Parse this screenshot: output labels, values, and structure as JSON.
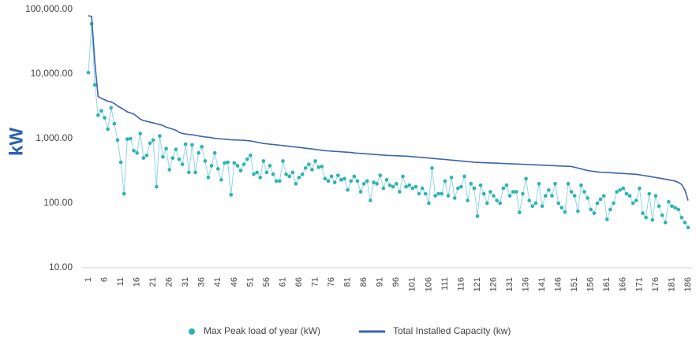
{
  "chart_data": {
    "type": "line",
    "y_label": "kW",
    "log_scale": true,
    "ylim": [
      10,
      100000
    ],
    "yticks": [
      {
        "value": 10,
        "label": "10.00"
      },
      {
        "value": 100,
        "label": "100.00"
      },
      {
        "value": 1000,
        "label": "1,000.00"
      },
      {
        "value": 10000,
        "label": "10,000.00"
      },
      {
        "value": 100000,
        "label": "100,000.00"
      }
    ],
    "legend": "bottom",
    "categories": [
      1,
      null,
      null,
      null,
      null,
      6,
      null,
      null,
      null,
      null,
      11,
      null,
      null,
      null,
      null,
      16,
      null,
      null,
      null,
      null,
      21,
      null,
      null,
      null,
      null,
      26,
      null,
      null,
      null,
      null,
      31,
      null,
      null,
      null,
      null,
      36,
      null,
      null,
      null,
      null,
      41,
      null,
      null,
      null,
      null,
      46,
      null,
      null,
      null,
      null,
      51,
      null,
      null,
      null,
      null,
      56,
      null,
      null,
      null,
      null,
      61,
      null,
      null,
      null,
      null,
      66,
      null,
      null,
      null,
      null,
      71,
      null,
      null,
      null,
      null,
      76,
      null,
      null,
      null,
      null,
      81,
      null,
      null,
      null,
      null,
      86,
      null,
      null,
      null,
      null,
      91,
      null,
      null,
      null,
      null,
      96,
      null,
      null,
      null,
      null,
      101,
      null,
      null,
      null,
      null,
      106,
      null,
      null,
      null,
      null,
      111,
      null,
      null,
      null,
      null,
      116,
      null,
      null,
      null,
      null,
      121,
      null,
      null,
      null,
      null,
      126,
      null,
      null,
      null,
      null,
      131,
      null,
      null,
      null,
      null,
      136,
      null,
      null,
      null,
      null,
      141,
      null,
      null,
      null,
      null,
      146,
      null,
      null,
      null,
      null,
      151,
      null,
      null,
      null,
      null,
      156,
      null,
      null,
      null,
      null,
      161,
      null,
      null,
      null,
      null,
      166,
      null,
      null,
      null,
      null,
      171,
      null,
      null,
      null,
      null,
      176,
      null,
      null,
      null,
      null,
      181,
      null,
      null,
      null,
      null,
      186
    ],
    "series": [
      {
        "name": "Max Peak load of year (kW)",
        "style": "markers",
        "color": "#2bb3b1",
        "line_color": "#8fd6e6",
        "values": [
          10500,
          60000,
          6800,
          2300,
          2700,
          2100,
          1400,
          3000,
          1700,
          950,
          430,
          140,
          980,
          1000,
          650,
          600,
          1200,
          500,
          550,
          850,
          950,
          180,
          1100,
          520,
          700,
          330,
          500,
          680,
          480,
          400,
          820,
          300,
          800,
          300,
          600,
          750,
          450,
          250,
          380,
          600,
          340,
          230,
          420,
          430,
          135,
          420,
          380,
          320,
          400,
          480,
          550,
          280,
          300,
          250,
          450,
          300,
          380,
          280,
          220,
          220,
          450,
          280,
          260,
          300,
          200,
          250,
          280,
          350,
          400,
          330,
          450,
          360,
          370,
          240,
          220,
          260,
          210,
          270,
          230,
          240,
          160,
          220,
          260,
          220,
          150,
          200,
          220,
          110,
          210,
          200,
          270,
          170,
          230,
          190,
          180,
          200,
          150,
          260,
          180,
          190,
          170,
          180,
          140,
          170,
          140,
          100,
          350,
          130,
          140,
          140,
          220,
          130,
          250,
          120,
          170,
          180,
          260,
          110,
          200,
          170,
          63,
          190,
          140,
          100,
          150,
          130,
          110,
          100,
          170,
          190,
          130,
          150,
          150,
          72,
          140,
          240,
          110,
          90,
          100,
          200,
          90,
          130,
          160,
          130,
          200,
          100,
          85,
          73,
          200,
          150,
          130,
          75,
          190,
          150,
          120,
          80,
          70,
          100,
          115,
          130,
          56,
          80,
          100,
          150,
          160,
          170,
          140,
          130,
          100,
          110,
          170,
          70,
          60,
          140,
          55,
          130,
          90,
          65,
          50,
          105,
          90,
          85,
          80,
          60,
          50,
          42
        ]
      },
      {
        "name": "Total Installed Capacity  (kw)",
        "style": "line",
        "color": "#3a63b0",
        "values": [
          80000,
          78000,
          15000,
          4500,
          4200,
          4000,
          3800,
          3700,
          3500,
          3200,
          3000,
          2800,
          2600,
          2500,
          2400,
          2200,
          2000,
          1900,
          1850,
          1800,
          1750,
          1700,
          1650,
          1600,
          1500,
          1450,
          1400,
          1350,
          1250,
          1200,
          1180,
          1160,
          1150,
          1120,
          1100,
          1080,
          1060,
          1050,
          1030,
          1010,
          1000,
          990,
          980,
          970,
          960,
          955,
          950,
          945,
          940,
          930,
          920,
          900,
          880,
          860,
          840,
          830,
          820,
          810,
          800,
          790,
          780,
          770,
          760,
          750,
          740,
          730,
          720,
          710,
          700,
          690,
          680,
          670,
          660,
          650,
          645,
          640,
          635,
          630,
          625,
          620,
          615,
          610,
          600,
          595,
          590,
          585,
          580,
          575,
          570,
          565,
          560,
          555,
          550,
          548,
          545,
          542,
          540,
          537,
          534,
          530,
          525,
          520,
          515,
          510,
          505,
          500,
          495,
          490,
          485,
          480,
          475,
          470,
          465,
          460,
          455,
          450,
          445,
          440,
          435,
          430,
          428,
          426,
          424,
          422,
          420,
          418,
          416,
          414,
          412,
          410,
          408,
          406,
          404,
          402,
          400,
          398,
          396,
          394,
          392,
          390,
          388,
          386,
          384,
          382,
          380,
          378,
          376,
          374,
          372,
          370,
          360,
          350,
          340,
          330,
          320,
          315,
          310,
          305,
          302,
          300,
          298,
          296,
          294,
          292,
          290,
          288,
          286,
          284,
          282,
          280,
          275,
          270,
          265,
          260,
          255,
          250,
          245,
          240,
          235,
          230,
          225,
          220,
          210,
          195,
          160,
          110
        ]
      }
    ]
  }
}
